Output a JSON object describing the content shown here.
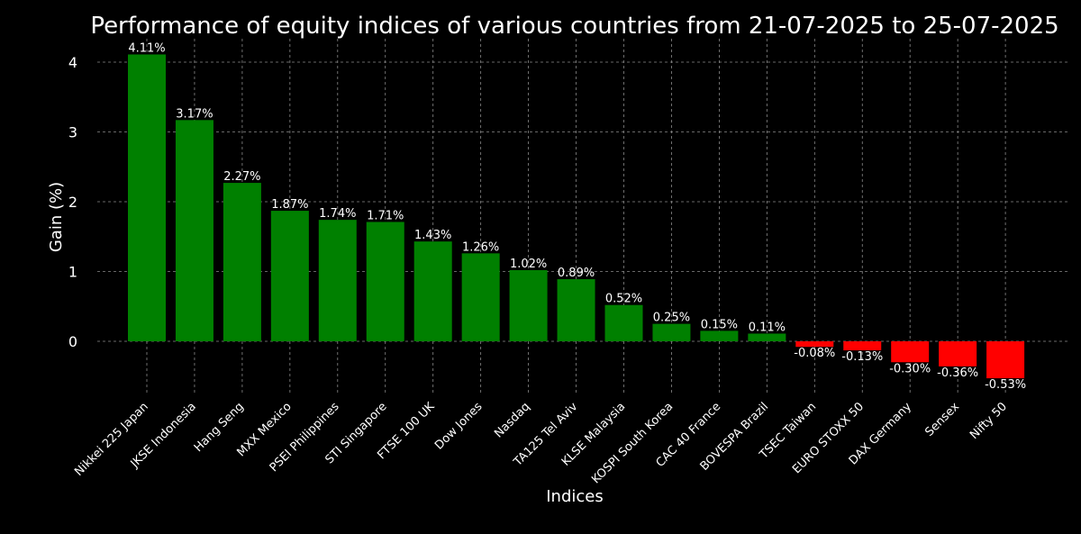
{
  "chart_data": {
    "type": "bar",
    "title": "Performance of equity indices of various countries from 21-07-2025 to 25-07-2025",
    "xlabel": "Indices",
    "ylabel": "Gain (%)",
    "categories": [
      "Nikkei 225 Japan",
      "JKSE Indonesia",
      "Hang Seng",
      "MXX Mexico",
      "PSEI Philippines",
      "STI Singapore",
      "FTSE 100 UK",
      "Dow Jones",
      "Nasdaq",
      "TA125 Tel Aviv",
      "KLSE Malaysia",
      "KOSPI South Korea",
      "CAC 40 France",
      "BOVESPA Brazil",
      "TSEC Taiwan",
      "EURO STOXX 50",
      "DAX Germany",
      "Sensex",
      "Nifty 50"
    ],
    "values": [
      4.11,
      3.17,
      2.27,
      1.87,
      1.74,
      1.71,
      1.43,
      1.26,
      1.02,
      0.89,
      0.52,
      0.25,
      0.15,
      0.11,
      -0.08,
      -0.13,
      -0.3,
      -0.36,
      -0.53
    ],
    "data_labels": [
      "4.11%",
      "3.17%",
      "2.27%",
      "1.87%",
      "1.74%",
      "1.71%",
      "1.43%",
      "1.26%",
      "1.02%",
      "0.89%",
      "0.52%",
      "0.25%",
      "0.15%",
      "0.11%",
      "-0.08%",
      "-0.13%",
      "-0.30%",
      "-0.36%",
      "-0.53%"
    ],
    "yticks": [
      0,
      1,
      2,
      3,
      4
    ],
    "ylim": [
      -0.75,
      4.3
    ],
    "grid": true,
    "colors": {
      "positive": "#008000",
      "negative": "#ff0000",
      "background": "#000000",
      "text": "#ffffff"
    }
  }
}
